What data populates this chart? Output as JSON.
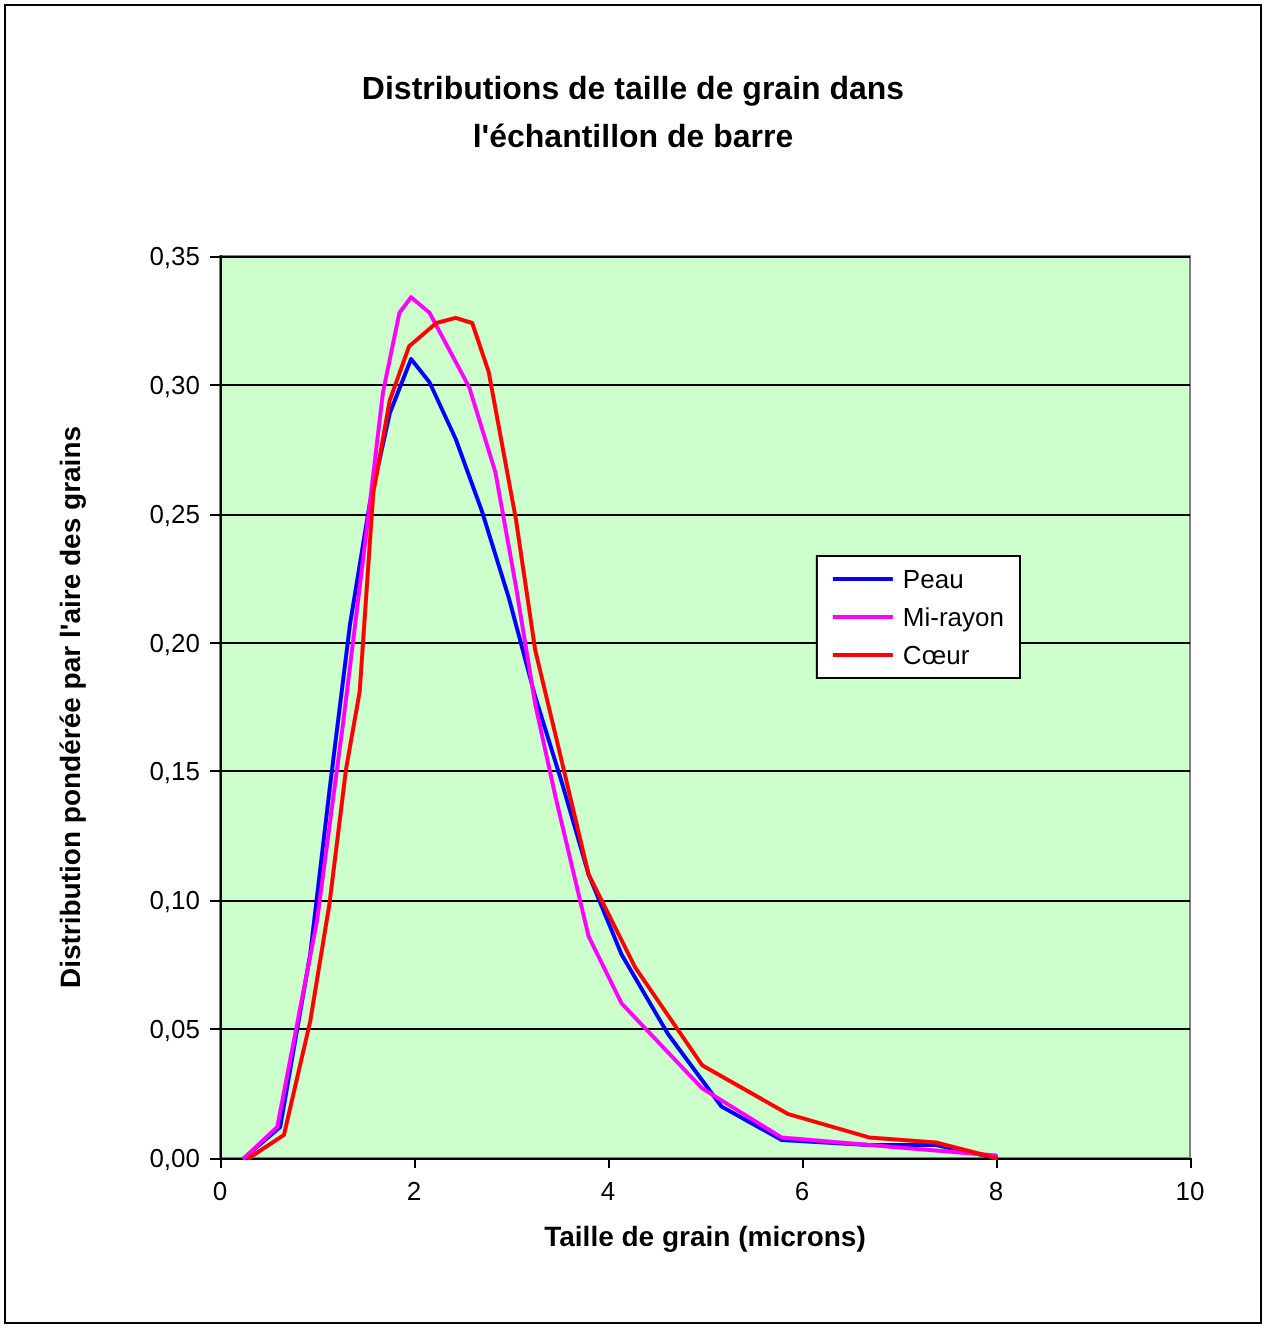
{
  "chart_data": {
    "type": "line",
    "title": "Distributions de taille de grain dans\nl'échantillon de barre",
    "xlabel": "Taille de grain (microns)",
    "ylabel": "Distribution pondérée par l'aire des grains",
    "series": [
      {
        "name": "Peau",
        "color": "#0000ff",
        "x": [
          0.25,
          0.62,
          0.93,
          1.13,
          1.34,
          1.54,
          1.75,
          1.97,
          2.16,
          2.43,
          2.7,
          2.98,
          3.25,
          3.53,
          3.8,
          4.14,
          4.62,
          5.17,
          5.79,
          6.69,
          7.38,
          8.0
        ],
        "values": [
          0,
          0.012,
          0.079,
          0.143,
          0.207,
          0.253,
          0.289,
          0.31,
          0.301,
          0.279,
          0.251,
          0.217,
          0.179,
          0.145,
          0.11,
          0.079,
          0.048,
          0.02,
          0.007,
          0.005,
          0.005,
          0
        ]
      },
      {
        "name": "Mi-rayon",
        "color": "#ff00ff",
        "x": [
          0.25,
          0.59,
          1.0,
          1.27,
          1.51,
          1.68,
          1.85,
          1.97,
          2.16,
          2.57,
          2.84,
          3.05,
          3.25,
          3.46,
          3.8,
          4.14,
          4.97,
          5.79,
          7.03,
          8.0
        ],
        "values": [
          0,
          0.012,
          0.092,
          0.169,
          0.243,
          0.297,
          0.328,
          0.334,
          0.328,
          0.299,
          0.266,
          0.222,
          0.176,
          0.14,
          0.086,
          0.06,
          0.027,
          0.008,
          0.004,
          0.001
        ]
      },
      {
        "name": "Cœur",
        "color": "#ff0000",
        "x": [
          0.3,
          0.66,
          0.93,
          1.13,
          1.3,
          1.44,
          1.58,
          1.75,
          1.95,
          2.23,
          2.43,
          2.6,
          2.77,
          3.05,
          3.25,
          3.46,
          3.8,
          4.28,
          4.97,
          5.86,
          6.69,
          7.38,
          8.0
        ],
        "values": [
          0,
          0.009,
          0.053,
          0.099,
          0.151,
          0.181,
          0.258,
          0.294,
          0.315,
          0.324,
          0.326,
          0.324,
          0.305,
          0.248,
          0.197,
          0.164,
          0.11,
          0.074,
          0.036,
          0.017,
          0.008,
          0.006,
          0
        ]
      }
    ],
    "xlim": [
      0,
      10
    ],
    "xticks": [
      0,
      2,
      4,
      6,
      8,
      10
    ],
    "ylim": [
      0,
      0.35
    ],
    "yticks": [
      {
        "value": 0,
        "label": "0,00"
      },
      {
        "value": 0.05,
        "label": "0,05"
      },
      {
        "value": 0.1,
        "label": "0,10"
      },
      {
        "value": 0.15,
        "label": "0,15"
      },
      {
        "value": 0.2,
        "label": "0,20"
      },
      {
        "value": 0.25,
        "label": "0,25"
      },
      {
        "value": 0.3,
        "label": "0,30"
      },
      {
        "value": 0.35,
        "label": "0,35"
      }
    ],
    "grid": "y",
    "legend": "right",
    "marker": "none",
    "line_style": "solid"
  }
}
